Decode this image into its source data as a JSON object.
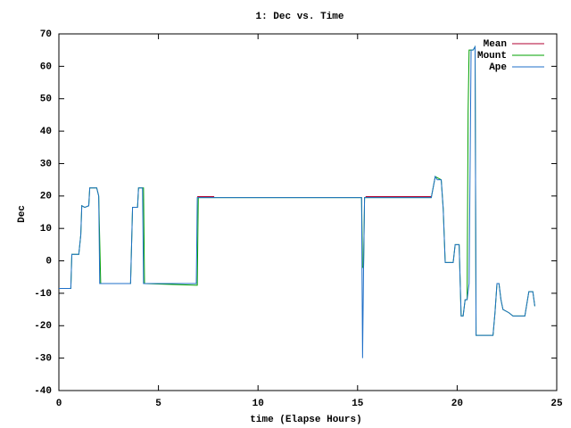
{
  "chart_data": {
    "type": "line",
    "title": "1: Dec vs. Time",
    "x_label": "time (Elapse Hours)",
    "y_label": "Dec",
    "xlim": [
      0,
      25
    ],
    "xticks": [
      0,
      5,
      10,
      15,
      20,
      25
    ],
    "ylim": [
      -40,
      70
    ],
    "yticks": [
      -40,
      -30,
      -20,
      -10,
      0,
      10,
      20,
      30,
      40,
      50,
      60,
      70
    ],
    "legend": "top-right",
    "series": [
      {
        "name": "Mean",
        "color": "#b00030",
        "x": [
          6.95,
          7.8,
          7.9,
          15.4,
          18.7
        ],
        "values": [
          19.8,
          19.8,
          null,
          19.8,
          19.8
        ]
      },
      {
        "name": "Mount",
        "color": "#00a000",
        "x": [
          0,
          0.6,
          0.65,
          1.0,
          1.1,
          1.15,
          1.3,
          1.5,
          1.55,
          1.9,
          2.0,
          2.1,
          3.6,
          3.7,
          3.95,
          4.0,
          4.25,
          4.3,
          6.9,
          6.95,
          7.0,
          15.2,
          15.25,
          15.3,
          15.35,
          18.7,
          18.9,
          19.2,
          19.3,
          19.4,
          19.8,
          19.9,
          20.1,
          20.2,
          20.3,
          20.4,
          20.5,
          20.55,
          20.6,
          20.8,
          20.9,
          20.95,
          21.8,
          21.9,
          22.0,
          22.1,
          22.2,
          22.3,
          22.6,
          22.8,
          23.4,
          23.6,
          23.8,
          23.9
        ],
        "values": [
          -8.5,
          -8.5,
          2,
          2,
          8,
          17,
          16.5,
          17,
          22.5,
          22.5,
          20,
          -7,
          -7,
          16.5,
          16.5,
          22.5,
          22.5,
          -7,
          -7.5,
          -7.5,
          19.5,
          19.5,
          -2,
          -2,
          19.5,
          19.5,
          26,
          25,
          16,
          -0.5,
          -0.5,
          5,
          5,
          -17,
          -17,
          -12,
          -12,
          46,
          65,
          65,
          66,
          -23,
          -23,
          -16,
          -7,
          -7,
          -12,
          -15,
          -16,
          -17,
          -17,
          -9.5,
          -9.5,
          -14
        ]
      },
      {
        "name": "Ape",
        "color": "#1f6fc8",
        "x": [
          0,
          0.6,
          0.65,
          1.0,
          1.1,
          1.15,
          1.3,
          1.5,
          1.55,
          1.9,
          2.0,
          2.05,
          3.6,
          3.7,
          3.95,
          4.0,
          4.2,
          4.25,
          6.9,
          6.95,
          7.0,
          15.2,
          15.25,
          15.3,
          15.35,
          18.7,
          18.9,
          19.0,
          19.2,
          19.3,
          19.4,
          19.8,
          19.9,
          20.1,
          20.2,
          20.3,
          20.4,
          20.5,
          20.6,
          20.7,
          20.8,
          20.9,
          20.95,
          21.8,
          21.9,
          22.0,
          22.1,
          22.2,
          22.3,
          22.6,
          22.8,
          23.4,
          23.6,
          23.8,
          23.9
        ],
        "values": [
          -8.5,
          -8.5,
          2,
          2,
          8,
          17,
          16.5,
          17,
          22.5,
          22.5,
          20,
          -7,
          -7,
          16.5,
          16.5,
          22.5,
          22.5,
          -7,
          -7,
          19.5,
          19.5,
          19.5,
          -30,
          -2,
          19.5,
          19.5,
          26,
          25,
          25,
          16,
          -0.5,
          -0.5,
          5,
          5,
          -17,
          -17,
          -12,
          -12,
          -7,
          65,
          65,
          66,
          -23,
          -23,
          -16,
          -7,
          -7,
          -12,
          -15,
          -16,
          -17,
          -17,
          -9.5,
          -9.5,
          -14
        ]
      }
    ]
  }
}
